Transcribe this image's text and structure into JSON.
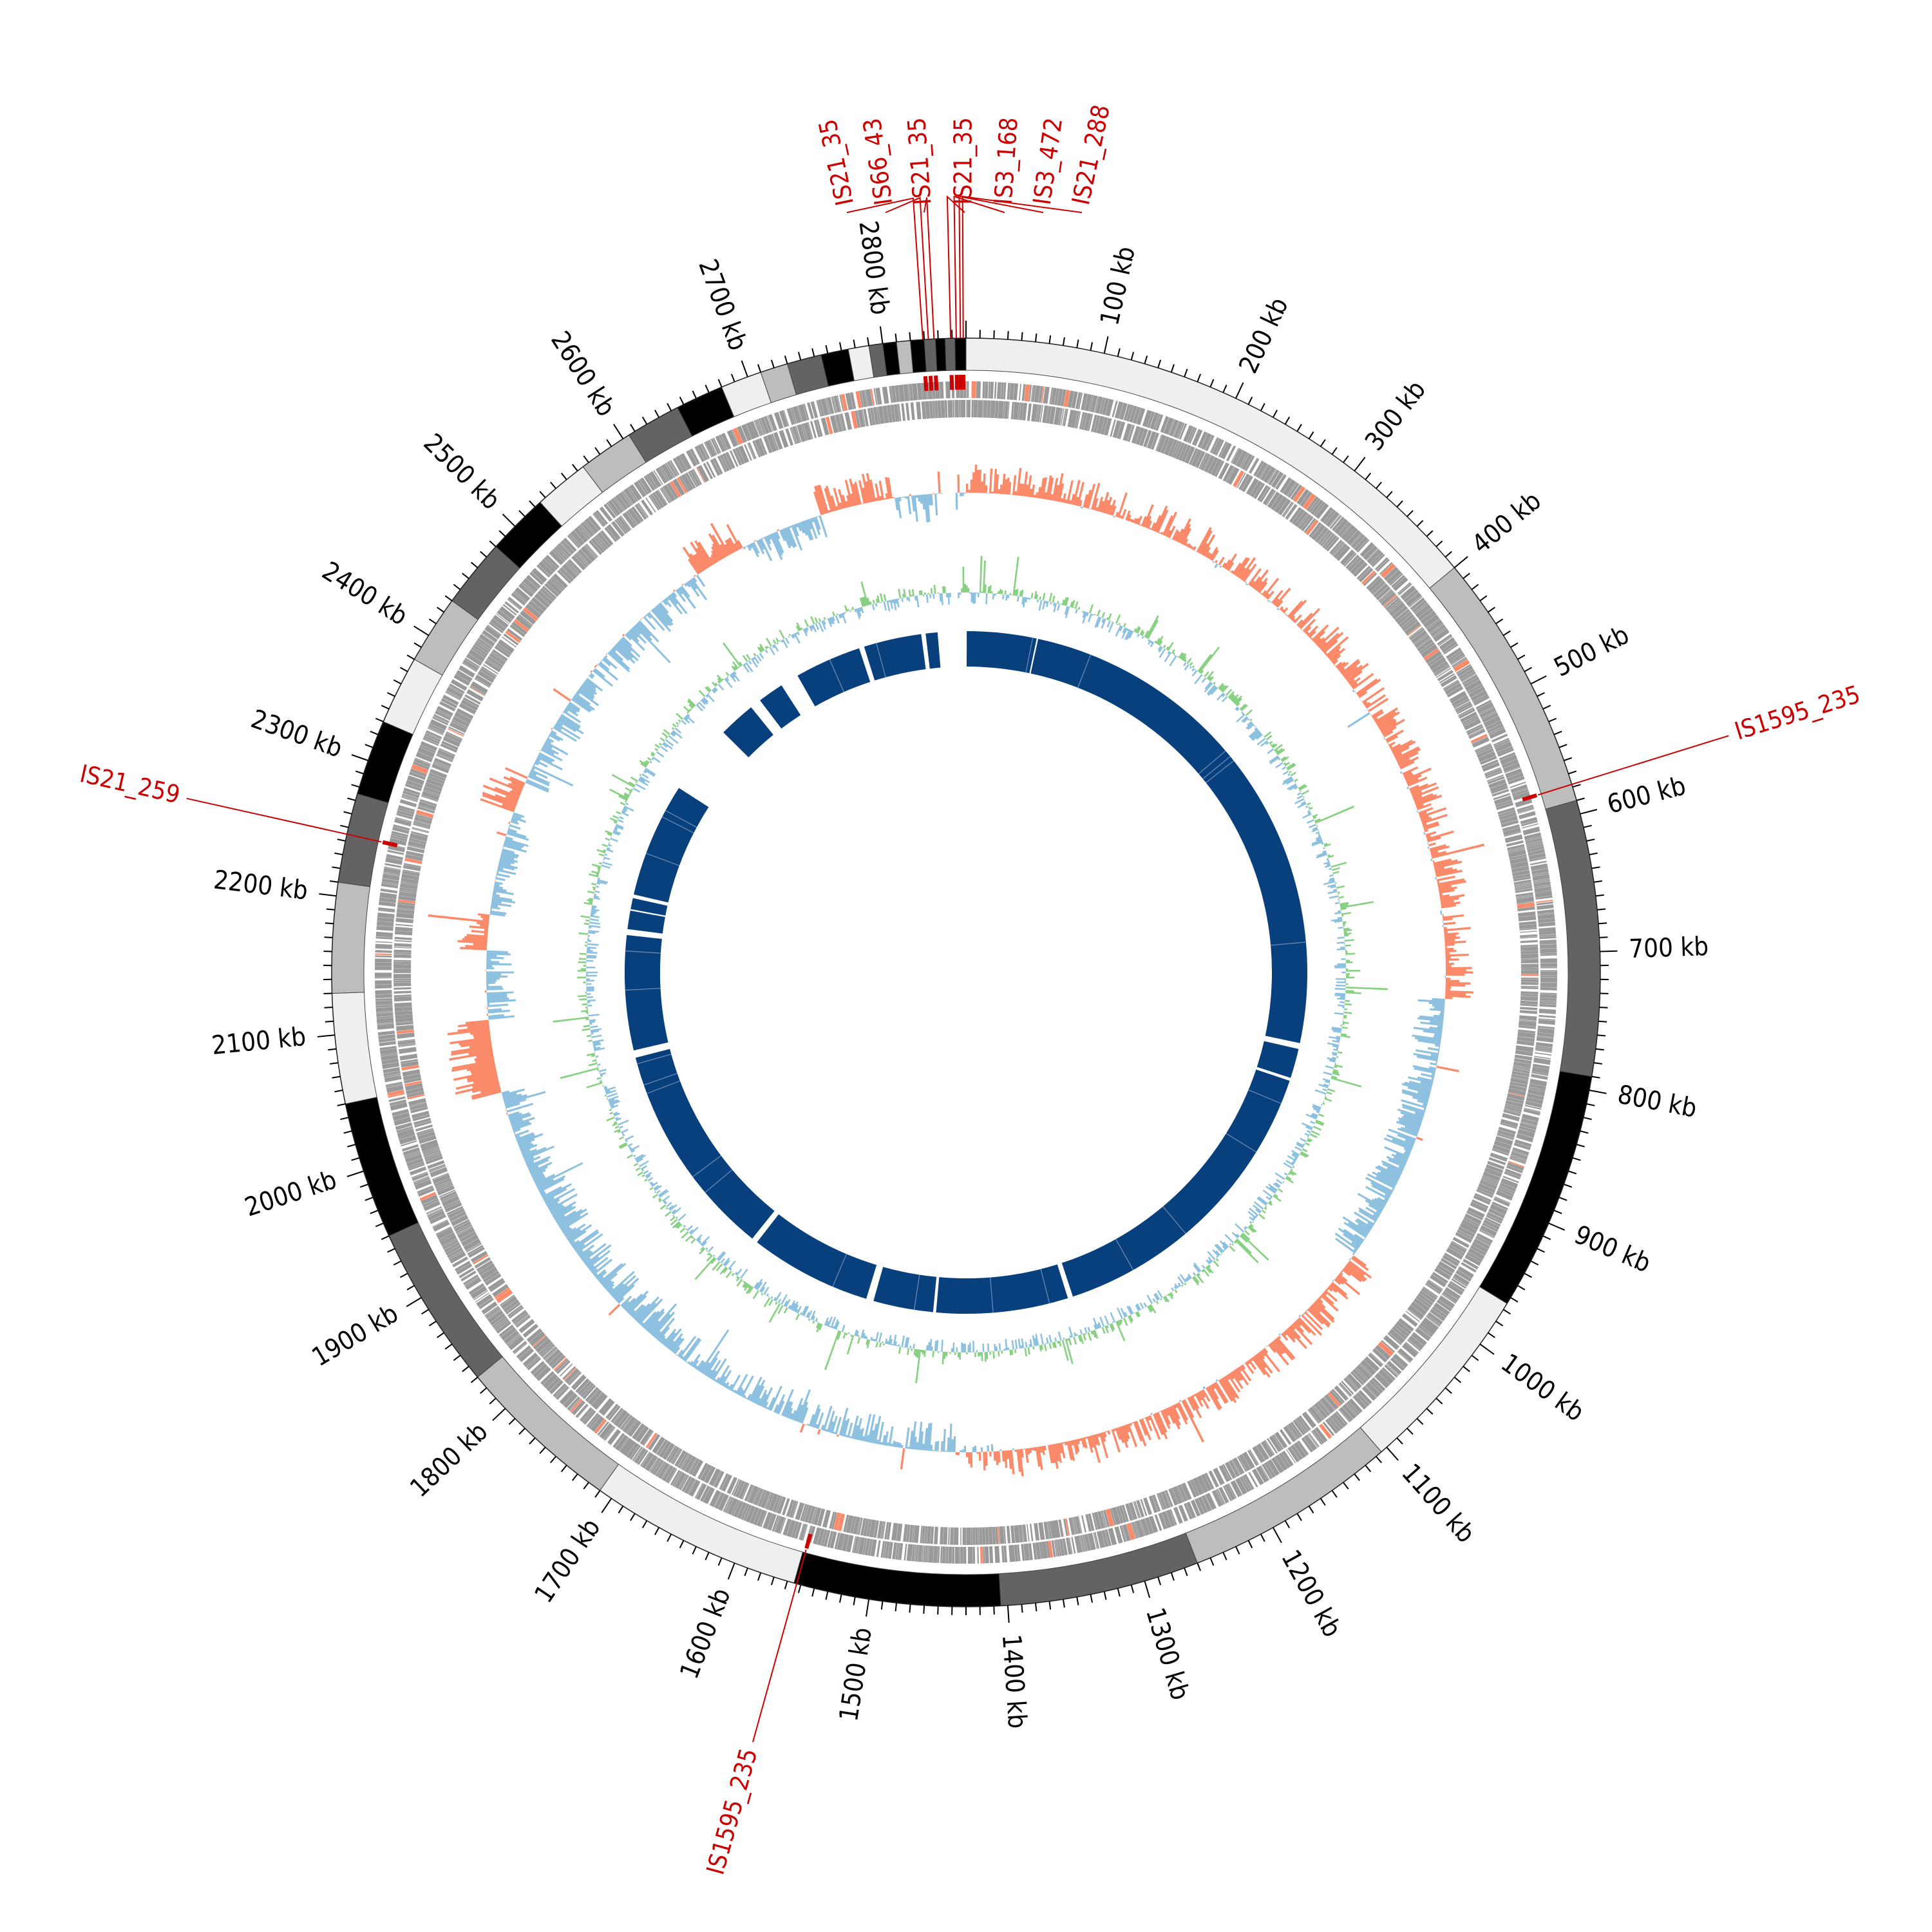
{
  "genome": {
    "length_kb": 2860,
    "tick_labels": [
      "100 kb",
      "200 kb",
      "300 kb",
      "400 kb",
      "500 kb",
      "600 kb",
      "700 kb",
      "800 kb",
      "900 kb",
      "1000 kb",
      "1100 kb",
      "1200 kb",
      "1300 kb",
      "1400 kb",
      "1500 kb",
      "1600 kb",
      "1700 kb",
      "1800 kb",
      "1900 kb",
      "2000 kb",
      "2100 kb",
      "2200 kb",
      "2300 kb",
      "2400 kb",
      "2500 kb",
      "2600 kb",
      "2700 kb",
      "2800 kb"
    ]
  },
  "contigs": [
    {
      "start": 0,
      "end": 400,
      "shade": "#efefef"
    },
    {
      "start": 400,
      "end": 590,
      "shade": "#bdbdbd"
    },
    {
      "start": 590,
      "end": 790,
      "shade": "#636363"
    },
    {
      "start": 790,
      "end": 965,
      "shade": "#000000"
    },
    {
      "start": 965,
      "end": 1105,
      "shade": "#efefef"
    },
    {
      "start": 1105,
      "end": 1260,
      "shade": "#bdbdbd"
    },
    {
      "start": 1260,
      "end": 1405,
      "shade": "#636363"
    },
    {
      "start": 1405,
      "end": 1555,
      "shade": "#000000"
    },
    {
      "start": 1555,
      "end": 1710,
      "shade": "#efefef"
    },
    {
      "start": 1710,
      "end": 1830,
      "shade": "#bdbdbd"
    },
    {
      "start": 1830,
      "end": 1950,
      "shade": "#636363"
    },
    {
      "start": 1950,
      "end": 2050,
      "shade": "#000000"
    },
    {
      "start": 2050,
      "end": 2130,
      "shade": "#efefef"
    },
    {
      "start": 2130,
      "end": 2210,
      "shade": "#bdbdbd"
    },
    {
      "start": 2210,
      "end": 2275,
      "shade": "#636363"
    },
    {
      "start": 2275,
      "end": 2330,
      "shade": "#000000"
    },
    {
      "start": 2330,
      "end": 2380,
      "shade": "#efefef"
    },
    {
      "start": 2380,
      "end": 2430,
      "shade": "#bdbdbd"
    },
    {
      "start": 2430,
      "end": 2480,
      "shade": "#636363"
    },
    {
      "start": 2480,
      "end": 2525,
      "shade": "#000000"
    },
    {
      "start": 2525,
      "end": 2565,
      "shade": "#efefef"
    },
    {
      "start": 2565,
      "end": 2605,
      "shade": "#bdbdbd"
    },
    {
      "start": 2605,
      "end": 2645,
      "shade": "#636363"
    },
    {
      "start": 2645,
      "end": 2680,
      "shade": "#000000"
    },
    {
      "start": 2680,
      "end": 2710,
      "shade": "#efefef"
    },
    {
      "start": 2710,
      "end": 2730,
      "shade": "#bdbdbd"
    },
    {
      "start": 2730,
      "end": 2755,
      "shade": "#636363"
    },
    {
      "start": 2755,
      "end": 2775,
      "shade": "#000000"
    },
    {
      "start": 2775,
      "end": 2790,
      "shade": "#efefef"
    },
    {
      "start": 2790,
      "end": 2800,
      "shade": "#636363"
    },
    {
      "start": 2800,
      "end": 2810,
      "shade": "#000000"
    },
    {
      "start": 2810,
      "end": 2820,
      "shade": "#bdbdbd"
    },
    {
      "start": 2820,
      "end": 2830,
      "shade": "#000000"
    },
    {
      "start": 2830,
      "end": 2838,
      "shade": "#636363"
    },
    {
      "start": 2838,
      "end": 2845,
      "shade": "#000000"
    },
    {
      "start": 2845,
      "end": 2852,
      "shade": "#636363"
    },
    {
      "start": 2852,
      "end": 2860,
      "shade": "#000000"
    }
  ],
  "is_elements": [
    {
      "name": "IS21_35",
      "pos": 2829
    },
    {
      "name": "IS66_43",
      "pos": 2833
    },
    {
      "name": "IS21_35",
      "pos": 2837
    },
    {
      "name": "IS21_35",
      "pos": 2849
    },
    {
      "name": "IS3_168",
      "pos": 2853
    },
    {
      "name": "IS3_472",
      "pos": 2856
    },
    {
      "name": "IS21_288",
      "pos": 2858
    },
    {
      "name": "IS1595_235",
      "pos": 578
    },
    {
      "name": "IS1595_235",
      "pos": 1553
    },
    {
      "name": "IS21_259",
      "pos": 2245
    }
  ],
  "synteny_blocks": [
    {
      "start": 1,
      "end": 95
    },
    {
      "start": 97,
      "end": 810
    },
    {
      "start": 818,
      "end": 858
    },
    {
      "start": 862,
      "end": 1285
    },
    {
      "start": 1292,
      "end": 1470
    },
    {
      "start": 1474,
      "end": 1555
    },
    {
      "start": 1565,
      "end": 1730
    },
    {
      "start": 1738,
      "end": 2030
    },
    {
      "start": 2040,
      "end": 2195
    },
    {
      "start": 2203,
      "end": 2228
    },
    {
      "start": 2230,
      "end": 2245
    },
    {
      "start": 2250,
      "end": 2405
    },
    {
      "start": 2500,
      "end": 2550
    },
    {
      "start": 2565,
      "end": 2600
    },
    {
      "start": 2625,
      "end": 2715
    },
    {
      "start": 2722,
      "end": 2800
    },
    {
      "start": 2806,
      "end": 2822
    }
  ],
  "colors": {
    "is_red": "#cc0000",
    "gene_grey": "#999999",
    "skew_positive": "#fb8a6a",
    "skew_negative": "#8ec1e0",
    "gc_positive": "#88d082",
    "gc_negative": "#8ec1e0",
    "synteny_blue": "#08407e",
    "axis_black": "#000000"
  }
}
